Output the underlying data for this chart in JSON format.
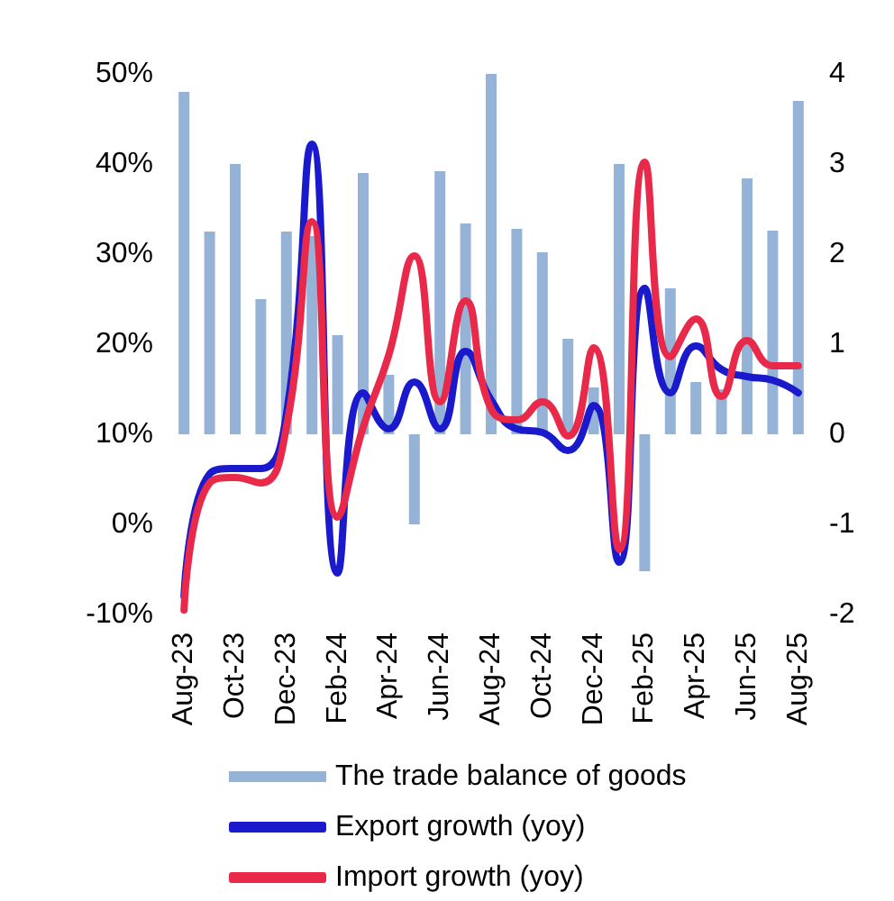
{
  "chart_data": {
    "type": "line",
    "categories": [
      "Aug-23",
      null,
      "Oct-23",
      null,
      "Dec-23",
      null,
      "Feb-24",
      null,
      "Apr-24",
      null,
      "Jun-24",
      null,
      "Aug-24",
      null,
      "Oct-24",
      null,
      "Dec-24",
      null,
      "Feb-25",
      null,
      "Apr-25",
      null,
      "Jun-25",
      null,
      "Aug-25"
    ],
    "series": [
      {
        "name": "The trade balance of goods",
        "type": "bar",
        "axis": "y2",
        "color": "#95b3d7",
        "values": [
          3.8,
          2.25,
          3.0,
          1.5,
          2.25,
          2.2,
          1.1,
          2.9,
          0.66,
          -1.0,
          2.92,
          2.34,
          4.0,
          2.28,
          2.02,
          1.06,
          0.52,
          3.0,
          -1.52,
          1.62,
          0.58,
          0.5,
          2.84,
          2.26,
          3.7
        ]
      },
      {
        "name": "Export growth (yoy)",
        "color": "#1a1acc",
        "values": [
          -8,
          5.6,
          6.2,
          6.2,
          12.2,
          42.2,
          -5.4,
          14.6,
          10.6,
          15.8,
          10.6,
          19.2,
          13.8,
          10.6,
          10.2,
          8.2,
          13.2,
          -4.2,
          26.2,
          14.6,
          19.8,
          17.2,
          16.4,
          16.0,
          14.6
        ]
      },
      {
        "name": "Import growth (yoy)",
        "color": "#e8294a",
        "values": [
          -9.5,
          4.6,
          5.2,
          4.6,
          10.8,
          33.6,
          0.8,
          10.8,
          18.8,
          29.8,
          13.6,
          24.8,
          12.8,
          11.6,
          13.6,
          9.8,
          19.6,
          -2.8,
          40.2,
          18.6,
          22.8,
          14.2,
          20.4,
          17.6,
          17.6
        ]
      }
    ],
    "ylim": [
      -10,
      50
    ],
    "yticks": [
      {
        "value": -10,
        "label": "-10%"
      },
      {
        "value": 0,
        "label": "0%"
      },
      {
        "value": 10,
        "label": "10%"
      },
      {
        "value": 20,
        "label": "20%"
      },
      {
        "value": 30,
        "label": "30%"
      },
      {
        "value": 40,
        "label": "40%"
      },
      {
        "value": 50,
        "label": "50%"
      }
    ],
    "y2lim": [
      -2,
      4
    ],
    "y2ticks": [
      -2,
      -1,
      0,
      1,
      2,
      3,
      4
    ],
    "grid": false,
    "legend": "bottom",
    "marker": "none"
  }
}
